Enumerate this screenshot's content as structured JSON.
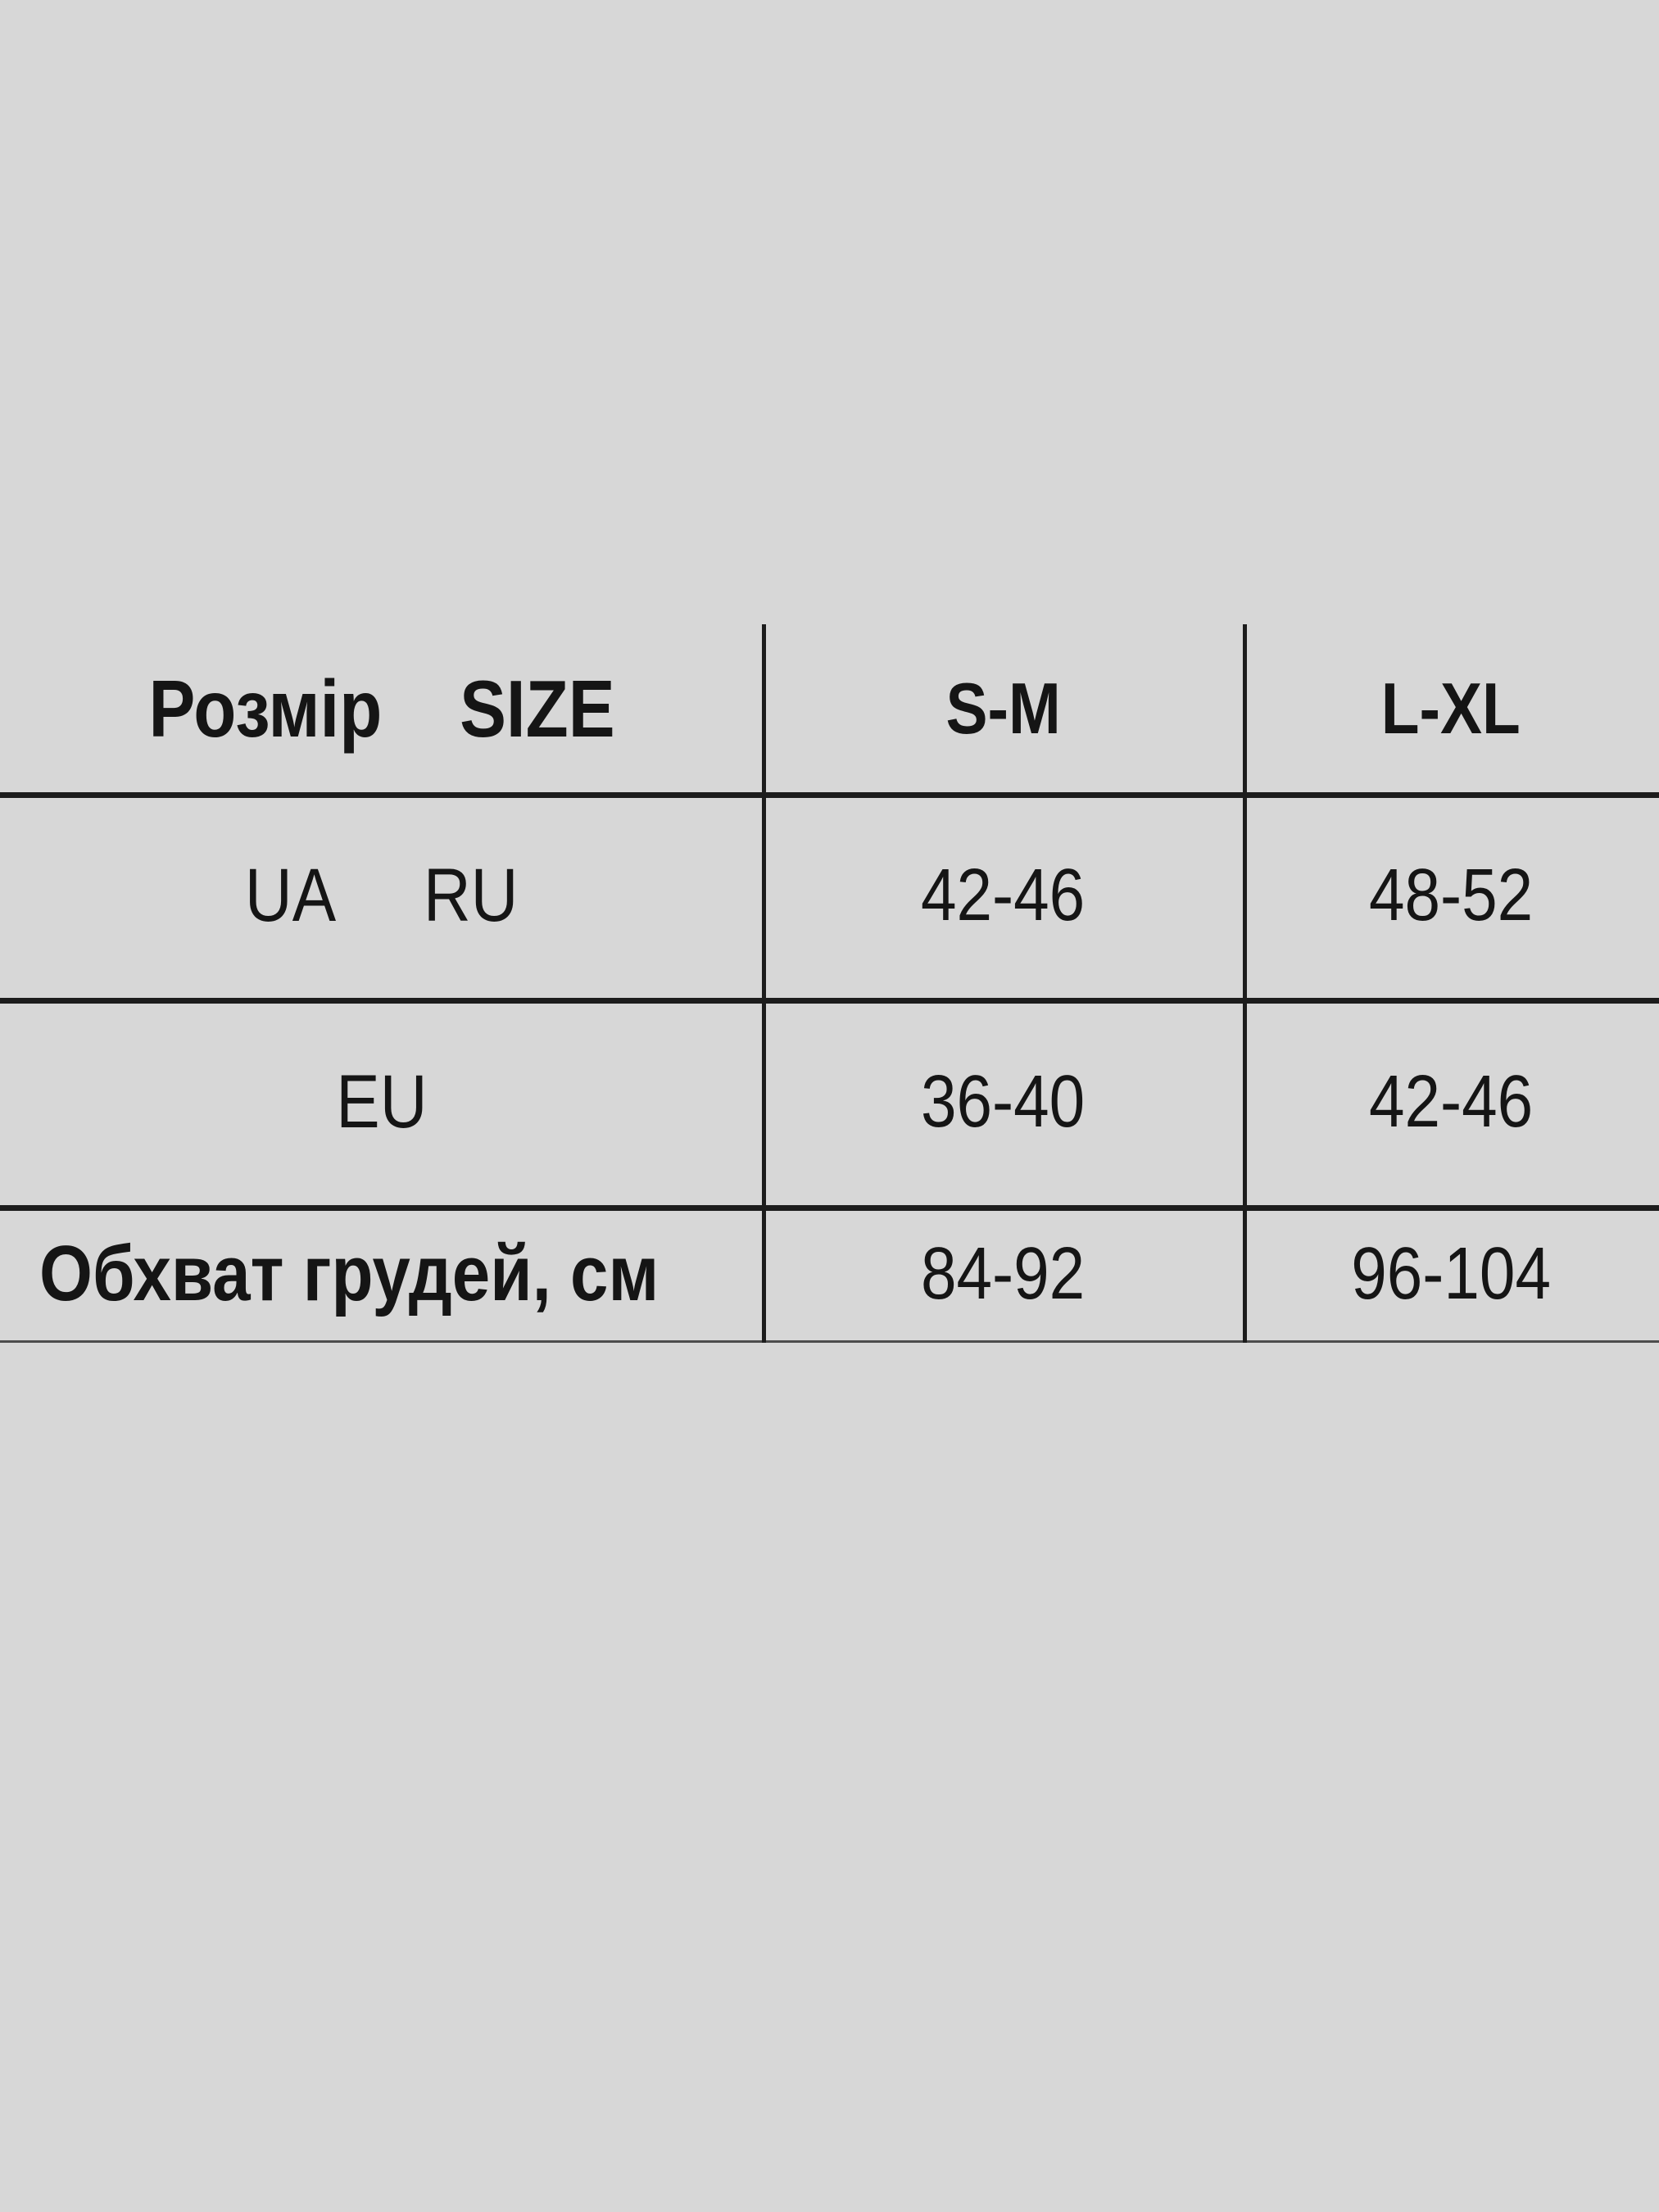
{
  "page": {
    "background_color": "#d7d7d7",
    "line_color": "#1c1c1c",
    "text_color": "#151515"
  },
  "size_table": {
    "header": {
      "size_label": "Розмір    SIZE",
      "col_sm": "S-M",
      "col_lxl": "L-XL"
    },
    "rows": [
      {
        "label": "UA     RU",
        "sm": "42-46",
        "lxl": "48-52"
      },
      {
        "label": "EU",
        "sm": "36-40",
        "lxl": "42-46"
      },
      {
        "label": "Обхват грудей, см",
        "sm": "84-92",
        "lxl": "96-104"
      }
    ]
  }
}
